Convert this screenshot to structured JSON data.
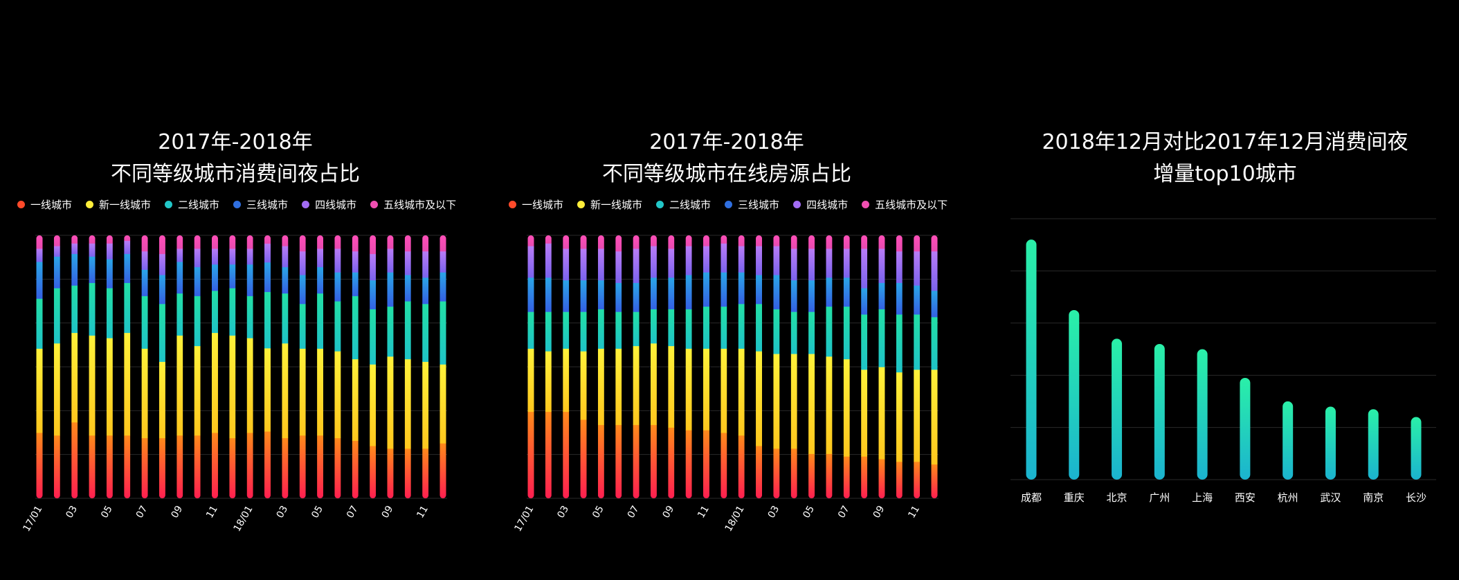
{
  "colors": {
    "tier1": "#ff3b3b",
    "newtier1": "#ffe63b",
    "tier2": "#22d7b0",
    "tier3": "#2f7fe6",
    "tier4": "#9b6df2",
    "tier5": "#ee4fb0",
    "bar_top": "#2af0a8",
    "bar_bottom": "#1bb3cf",
    "grid": "#2a2a2a"
  },
  "legend": [
    {
      "label": "一线城市",
      "color": "#ff4a2a"
    },
    {
      "label": "新一线城市",
      "color": "#ffee3a"
    },
    {
      "label": "二线城市",
      "color": "#22c7c8"
    },
    {
      "label": "三线城市",
      "color": "#2f6fe0"
    },
    {
      "label": "四线城市",
      "color": "#a26cf4"
    },
    {
      "label": "五线城市及以下",
      "color": "#f04fb2"
    }
  ],
  "chart_data": [
    {
      "type": "bar",
      "stacked": true,
      "normalized": true,
      "title": [
        "2017年-2018年",
        "不同等级城市消费间夜占比"
      ],
      "x_tick_labels": [
        "17/01",
        "03",
        "05",
        "07",
        "09",
        "11",
        "18/01",
        "03",
        "05",
        "07",
        "09",
        "11"
      ],
      "x_tick_every": 2,
      "series_names": [
        "一线城市",
        "新一线城市",
        "二线城市",
        "三线城市",
        "四线城市",
        "五线城市及以下"
      ],
      "ylim": [
        0,
        1
      ],
      "y_axis_labels": false,
      "grid": true,
      "legend_position": "top-left",
      "series": [
        {
          "name": "一线城市",
          "values": [
            0.25,
            0.24,
            0.29,
            0.24,
            0.24,
            0.24,
            0.23,
            0.23,
            0.24,
            0.24,
            0.25,
            0.23,
            0.25,
            0.25,
            0.23,
            0.24,
            0.24,
            0.23,
            0.22,
            0.2,
            0.19,
            0.19,
            0.19,
            0.21
          ]
        },
        {
          "name": "新一线城市",
          "values": [
            0.32,
            0.35,
            0.34,
            0.38,
            0.37,
            0.39,
            0.34,
            0.29,
            0.38,
            0.34,
            0.38,
            0.39,
            0.36,
            0.31,
            0.36,
            0.33,
            0.33,
            0.33,
            0.31,
            0.31,
            0.35,
            0.34,
            0.33,
            0.3
          ]
        },
        {
          "name": "二线城市",
          "values": [
            0.19,
            0.21,
            0.18,
            0.2,
            0.19,
            0.19,
            0.2,
            0.22,
            0.16,
            0.19,
            0.16,
            0.18,
            0.16,
            0.21,
            0.19,
            0.17,
            0.21,
            0.19,
            0.24,
            0.21,
            0.19,
            0.22,
            0.22,
            0.24
          ]
        },
        {
          "name": "三线城市",
          "values": [
            0.14,
            0.12,
            0.12,
            0.1,
            0.11,
            0.11,
            0.1,
            0.11,
            0.12,
            0.11,
            0.1,
            0.09,
            0.12,
            0.11,
            0.1,
            0.11,
            0.1,
            0.11,
            0.09,
            0.11,
            0.13,
            0.1,
            0.1,
            0.11
          ]
        },
        {
          "name": "四线城市",
          "values": [
            0.05,
            0.04,
            0.04,
            0.05,
            0.06,
            0.05,
            0.07,
            0.08,
            0.05,
            0.07,
            0.06,
            0.06,
            0.06,
            0.07,
            0.08,
            0.09,
            0.07,
            0.09,
            0.08,
            0.1,
            0.09,
            0.09,
            0.1,
            0.08
          ]
        },
        {
          "name": "五线城市及以下",
          "values": [
            0.05,
            0.04,
            0.03,
            0.03,
            0.03,
            0.02,
            0.06,
            0.07,
            0.05,
            0.05,
            0.05,
            0.05,
            0.05,
            0.03,
            0.04,
            0.06,
            0.05,
            0.05,
            0.06,
            0.07,
            0.05,
            0.06,
            0.06,
            0.06
          ]
        }
      ]
    },
    {
      "type": "bar",
      "stacked": true,
      "normalized": true,
      "title": [
        "2017年-2018年",
        "不同等级城市在线房源占比"
      ],
      "x_tick_labels": [
        "17/01",
        "03",
        "05",
        "07",
        "09",
        "11",
        "18/01",
        "03",
        "05",
        "07",
        "09",
        "11"
      ],
      "x_tick_every": 2,
      "series_names": [
        "一线城市",
        "新一线城市",
        "二线城市",
        "三线城市",
        "四线城市",
        "五线城市及以下"
      ],
      "ylim": [
        0,
        1
      ],
      "y_axis_labels": false,
      "grid": true,
      "legend_position": "top-left",
      "series": [
        {
          "name": "一线城市",
          "values": [
            0.33,
            0.33,
            0.33,
            0.3,
            0.28,
            0.28,
            0.28,
            0.28,
            0.27,
            0.26,
            0.26,
            0.25,
            0.24,
            0.2,
            0.19,
            0.19,
            0.17,
            0.17,
            0.16,
            0.16,
            0.15,
            0.14,
            0.14,
            0.13
          ]
        },
        {
          "name": "新一线城市",
          "values": [
            0.24,
            0.23,
            0.24,
            0.26,
            0.29,
            0.29,
            0.3,
            0.31,
            0.31,
            0.31,
            0.31,
            0.32,
            0.33,
            0.36,
            0.36,
            0.36,
            0.38,
            0.37,
            0.37,
            0.33,
            0.35,
            0.34,
            0.35,
            0.36
          ]
        },
        {
          "name": "二线城市",
          "values": [
            0.14,
            0.15,
            0.14,
            0.15,
            0.15,
            0.14,
            0.13,
            0.13,
            0.14,
            0.15,
            0.16,
            0.16,
            0.17,
            0.18,
            0.17,
            0.16,
            0.16,
            0.19,
            0.2,
            0.21,
            0.22,
            0.22,
            0.21,
            0.2
          ]
        },
        {
          "name": "三线城市",
          "values": [
            0.13,
            0.13,
            0.12,
            0.12,
            0.11,
            0.11,
            0.11,
            0.12,
            0.12,
            0.13,
            0.13,
            0.13,
            0.12,
            0.11,
            0.13,
            0.12,
            0.12,
            0.11,
            0.11,
            0.1,
            0.1,
            0.12,
            0.11,
            0.1
          ]
        },
        {
          "name": "四线城市",
          "values": [
            0.12,
            0.13,
            0.12,
            0.12,
            0.12,
            0.12,
            0.13,
            0.12,
            0.11,
            0.11,
            0.1,
            0.11,
            0.1,
            0.11,
            0.11,
            0.12,
            0.12,
            0.11,
            0.11,
            0.15,
            0.13,
            0.12,
            0.13,
            0.15
          ]
        },
        {
          "name": "五线城市及以下",
          "values": [
            0.04,
            0.03,
            0.05,
            0.05,
            0.05,
            0.06,
            0.05,
            0.04,
            0.05,
            0.04,
            0.04,
            0.03,
            0.04,
            0.04,
            0.04,
            0.05,
            0.05,
            0.05,
            0.05,
            0.05,
            0.05,
            0.06,
            0.06,
            0.06
          ]
        }
      ]
    },
    {
      "type": "bar",
      "title": [
        "2018年12月对比2017年12月消费间夜",
        "增量top10城市"
      ],
      "categories": [
        "成都",
        "重庆",
        "北京",
        "广州",
        "上海",
        "西安",
        "杭州",
        "武汉",
        "南京",
        "长沙"
      ],
      "values": [
        0.92,
        0.65,
        0.54,
        0.52,
        0.5,
        0.39,
        0.3,
        0.28,
        0.27,
        0.24
      ],
      "ylim": [
        0,
        1
      ],
      "y_axis_labels": false,
      "grid": true
    }
  ]
}
